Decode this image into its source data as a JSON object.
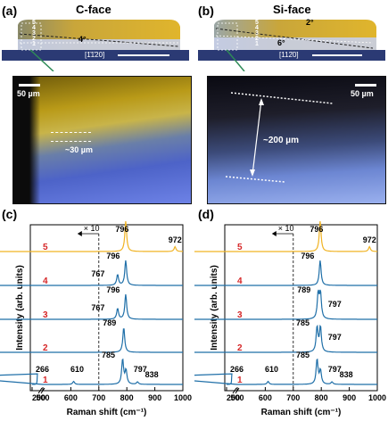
{
  "panels": {
    "a": {
      "letter": "(a)",
      "title": "C-face",
      "layers": [
        "5",
        "4",
        "3",
        "2",
        "1"
      ],
      "angle": "4°",
      "direction": "[1̄1̄20]",
      "scale": "50 µm",
      "thickness": "~30 µm"
    },
    "b": {
      "letter": "(b)",
      "title": "Si-face",
      "layers": [
        "5",
        "4",
        "3",
        "2",
        "1"
      ],
      "angle_top": "2°",
      "angle_bottom": "6°",
      "direction": "[112̄0]",
      "scale": "50 µm",
      "thickness": "~200 µm"
    },
    "c": {
      "letter": "(c)"
    },
    "d": {
      "letter": "(d)"
    }
  },
  "colors": {
    "spectrum_yellow": "#f0b323",
    "spectrum_blue": "#1f6fa8",
    "layer_label_red": "#d62728",
    "substrate_navy": "#2b3a74",
    "film_gold": "#d6ab2e"
  },
  "chart_data": [
    {
      "type": "line",
      "panel": "(c)",
      "xlabel": "Raman shift (cm⁻¹)",
      "ylabel": "Intensity (arb. units)",
      "xlim": [
        200,
        1000
      ],
      "x_broken_after": 200,
      "xticks": [
        "200",
        "500",
        "600",
        "700",
        "800",
        "900",
        "1000"
      ],
      "scale_note": "× 10",
      "divider_x": 700,
      "series": [
        {
          "name": "5",
          "peaks": [
            {
              "x": 796,
              "label": "796"
            },
            {
              "x": 972,
              "label": "972"
            }
          ]
        },
        {
          "name": "4",
          "peaks": [
            {
              "x": 767,
              "label": "767"
            },
            {
              "x": 796,
              "label": "796"
            }
          ]
        },
        {
          "name": "3",
          "peaks": [
            {
              "x": 767,
              "label": "767"
            },
            {
              "x": 796,
              "label": "796"
            }
          ]
        },
        {
          "name": "2",
          "peaks": [
            {
              "x": 789,
              "label": "789"
            }
          ]
        },
        {
          "name": "1",
          "peaks": [
            {
              "x": 266,
              "label": "266"
            },
            {
              "x": 610,
              "label": "610"
            },
            {
              "x": 785,
              "label": "785"
            },
            {
              "x": 797,
              "label": "797"
            },
            {
              "x": 838,
              "label": "838"
            }
          ]
        }
      ]
    },
    {
      "type": "line",
      "panel": "(d)",
      "xlabel": "Raman shift (cm⁻¹)",
      "ylabel": "Intensity (arb. units)",
      "xlim": [
        200,
        1000
      ],
      "x_broken_after": 200,
      "xticks": [
        "200",
        "500",
        "600",
        "700",
        "800",
        "900",
        "1000"
      ],
      "scale_note": "× 10",
      "divider_x": 700,
      "series": [
        {
          "name": "5",
          "peaks": [
            {
              "x": 796,
              "label": "796"
            },
            {
              "x": 972,
              "label": "972"
            }
          ]
        },
        {
          "name": "4",
          "peaks": [
            {
              "x": 796,
              "label": "796"
            }
          ]
        },
        {
          "name": "3",
          "peaks": [
            {
              "x": 789,
              "label": "789"
            },
            {
              "x": 797,
              "label": "797"
            }
          ]
        },
        {
          "name": "2",
          "peaks": [
            {
              "x": 785,
              "label": "785"
            },
            {
              "x": 797,
              "label": "797"
            }
          ]
        },
        {
          "name": "1",
          "peaks": [
            {
              "x": 266,
              "label": "266"
            },
            {
              "x": 610,
              "label": "610"
            },
            {
              "x": 785,
              "label": "785"
            },
            {
              "x": 797,
              "label": "797"
            },
            {
              "x": 838,
              "label": "838"
            }
          ]
        }
      ]
    }
  ]
}
